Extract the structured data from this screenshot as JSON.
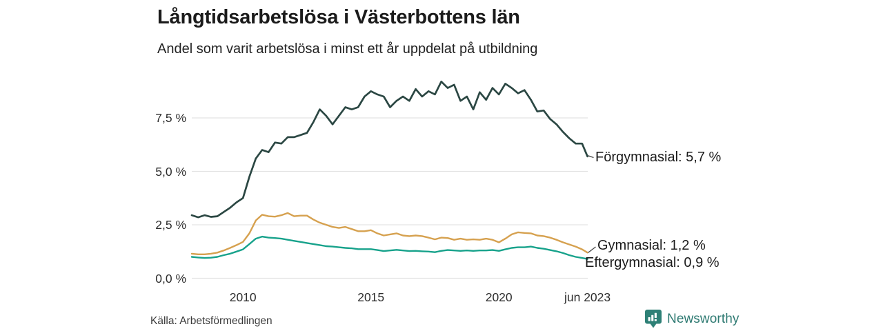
{
  "page": {
    "title": "Långtidsarbetslösa i Västerbottens län",
    "subtitle": "Andel som varit arbetslösa i minst ett år uppdelat på utbildning",
    "source": "Källa: Arbetsförmedlingen",
    "brand": {
      "name": "Newsworthy",
      "icon": "newsworthy-chart-bubble-icon",
      "icon_color": "#2e8076",
      "text_color": "#2e7a72"
    }
  },
  "chart_data": {
    "type": "line",
    "title": "Långtidsarbetslösa i Västerbottens län",
    "subtitle": "Andel som varit arbetslösa i minst ett år uppdelat på utbildning",
    "source": "Källa: Arbetsförmedlingen",
    "xlabel": "",
    "ylabel": "",
    "grid": "horizontal",
    "gridline_color": "#e3e3e3",
    "legend": "end-of-line-labels",
    "x_range": [
      2008.0,
      2023.46
    ],
    "ylim": [
      0,
      9.7
    ],
    "yticks": [
      {
        "value": 0.0,
        "label": "0,0 %"
      },
      {
        "value": 2.5,
        "label": "2,5 %"
      },
      {
        "value": 5.0,
        "label": "5,0 %"
      },
      {
        "value": 7.5,
        "label": "7,5 %"
      }
    ],
    "xticks": [
      {
        "value": 2010,
        "label": "2010"
      },
      {
        "value": 2015,
        "label": "2015"
      },
      {
        "value": 2020,
        "label": "2020"
      },
      {
        "value": 2023.46,
        "label": "jun 2023"
      }
    ],
    "x": [
      2008.0,
      2008.25,
      2008.5,
      2008.75,
      2009.0,
      2009.25,
      2009.5,
      2009.75,
      2010.0,
      2010.25,
      2010.5,
      2010.75,
      2011.0,
      2011.25,
      2011.5,
      2011.75,
      2012.0,
      2012.25,
      2012.5,
      2012.75,
      2013.0,
      2013.25,
      2013.5,
      2013.75,
      2014.0,
      2014.25,
      2014.5,
      2014.75,
      2015.0,
      2015.25,
      2015.5,
      2015.75,
      2016.0,
      2016.25,
      2016.5,
      2016.75,
      2017.0,
      2017.25,
      2017.5,
      2017.75,
      2018.0,
      2018.25,
      2018.5,
      2018.75,
      2019.0,
      2019.25,
      2019.5,
      2019.75,
      2020.0,
      2020.25,
      2020.5,
      2020.75,
      2021.0,
      2021.25,
      2021.5,
      2021.75,
      2022.0,
      2022.25,
      2022.5,
      2022.75,
      2023.0,
      2023.25,
      2023.46
    ],
    "series": [
      {
        "name": "Förgymnasial",
        "color": "#2b4743",
        "end_value": 5.7,
        "end_label": "Förgymnasial: 5,7 %",
        "values": [
          2.95,
          2.85,
          2.95,
          2.87,
          2.9,
          3.1,
          3.3,
          3.55,
          3.75,
          4.75,
          5.6,
          6.0,
          5.9,
          6.35,
          6.3,
          6.6,
          6.6,
          6.7,
          6.8,
          7.3,
          7.9,
          7.6,
          7.2,
          7.6,
          8.0,
          7.9,
          8.0,
          8.5,
          8.75,
          8.6,
          8.5,
          8.0,
          8.3,
          8.5,
          8.3,
          8.85,
          8.5,
          8.75,
          8.6,
          9.2,
          8.9,
          9.05,
          8.3,
          8.5,
          7.9,
          8.7,
          8.35,
          8.9,
          8.6,
          9.1,
          8.9,
          8.65,
          8.8,
          8.35,
          7.8,
          7.85,
          7.45,
          7.2,
          6.85,
          6.55,
          6.3,
          6.3,
          5.7
        ]
      },
      {
        "name": "Gymnasial",
        "color": "#d6a14f",
        "end_value": 1.2,
        "end_label": "Gymnasial: 1,2 %",
        "values": [
          1.15,
          1.12,
          1.12,
          1.15,
          1.2,
          1.3,
          1.42,
          1.55,
          1.7,
          2.1,
          2.7,
          2.97,
          2.9,
          2.88,
          2.95,
          3.05,
          2.9,
          2.93,
          2.93,
          2.75,
          2.6,
          2.5,
          2.4,
          2.35,
          2.4,
          2.3,
          2.2,
          2.2,
          2.25,
          2.1,
          2.0,
          2.05,
          2.1,
          2.0,
          1.97,
          2.0,
          1.97,
          1.9,
          1.82,
          1.9,
          1.88,
          1.8,
          1.85,
          1.8,
          1.82,
          1.8,
          1.85,
          1.8,
          1.68,
          1.85,
          2.05,
          2.15,
          2.12,
          2.1,
          2.0,
          1.97,
          1.9,
          1.8,
          1.68,
          1.58,
          1.48,
          1.35,
          1.2
        ]
      },
      {
        "name": "Eftergymnasial",
        "color": "#17a28b",
        "end_value": 0.9,
        "end_label": "Eftergymnasial: 0,9 %",
        "values": [
          1.0,
          0.97,
          0.95,
          0.96,
          1.0,
          1.08,
          1.15,
          1.25,
          1.35,
          1.6,
          1.85,
          1.95,
          1.9,
          1.88,
          1.85,
          1.8,
          1.75,
          1.7,
          1.65,
          1.6,
          1.55,
          1.5,
          1.48,
          1.45,
          1.42,
          1.4,
          1.36,
          1.36,
          1.36,
          1.32,
          1.27,
          1.3,
          1.33,
          1.3,
          1.27,
          1.28,
          1.26,
          1.25,
          1.22,
          1.28,
          1.32,
          1.3,
          1.28,
          1.3,
          1.28,
          1.3,
          1.3,
          1.32,
          1.28,
          1.35,
          1.42,
          1.45,
          1.45,
          1.48,
          1.42,
          1.38,
          1.32,
          1.26,
          1.18,
          1.08,
          1.0,
          0.95,
          0.9
        ]
      }
    ]
  }
}
